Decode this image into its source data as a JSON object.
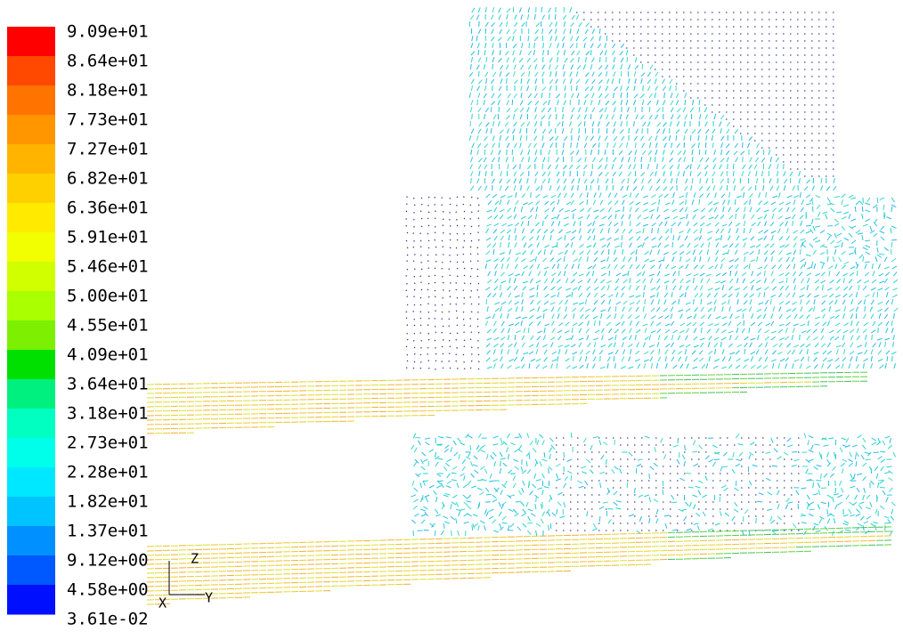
{
  "legend": {
    "labels": [
      "9.09e+01",
      "8.64e+01",
      "8.18e+01",
      "7.73e+01",
      "7.27e+01",
      "6.82e+01",
      "6.36e+01",
      "5.91e+01",
      "5.46e+01",
      "5.00e+01",
      "4.55e+01",
      "4.09e+01",
      "3.64e+01",
      "3.18e+01",
      "2.73e+01",
      "2.28e+01",
      "1.82e+01",
      "1.37e+01",
      "9.12e+00",
      "4.58e+00",
      "3.61e-02"
    ],
    "colors": [
      "#ff0000",
      "#ff4800",
      "#ff7400",
      "#ff9600",
      "#ffb400",
      "#ffd000",
      "#ffea00",
      "#f2ff00",
      "#d2ff00",
      "#aaff00",
      "#7cf000",
      "#00e000",
      "#00f080",
      "#00ffc0",
      "#00ffea",
      "#00e8ff",
      "#00c4ff",
      "#0090ff",
      "#0058ff",
      "#0010ff"
    ]
  },
  "axes": {
    "z": "Z",
    "x": "X",
    "y": "Y"
  }
}
